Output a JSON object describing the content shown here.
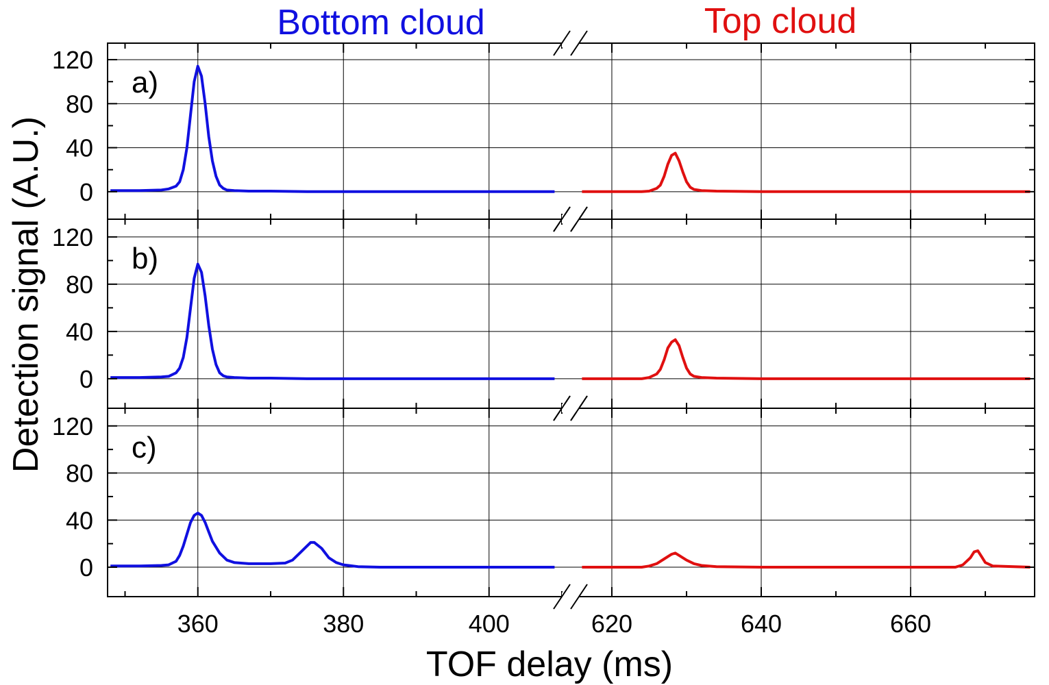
{
  "chart_data": {
    "type": "line",
    "xlabel": "TOF delay (ms)",
    "ylabel": "Detection signal (A.U.)",
    "segment_titles": [
      {
        "text": "Bottom cloud",
        "color": "#1010e0"
      },
      {
        "text": "Top cloud",
        "color": "#e01010"
      }
    ],
    "x_segments": [
      {
        "name": "bottom",
        "xlim": [
          347.6,
          410
        ],
        "ticks": [
          360,
          380,
          400
        ],
        "minor_ticks": [
          350,
          370,
          390,
          410
        ],
        "color": "#1010e0"
      },
      {
        "name": "top",
        "xlim": [
          615.6,
          676.6
        ],
        "ticks": [
          620,
          640,
          660
        ],
        "minor_ticks": [
          630,
          650,
          670
        ],
        "color": "#e01010"
      }
    ],
    "ylim": [
      -25,
      135
    ],
    "yticks": [
      0,
      40,
      80,
      120
    ],
    "yticks_minor": [
      20,
      60,
      100
    ],
    "panels": [
      {
        "label": "a)",
        "series": [
          {
            "segment": "bottom",
            "name": "Bottom cloud",
            "color": "#1010e0",
            "x": [
              348,
              352,
              355,
              356,
              357,
              357.5,
              358,
              358.5,
              359,
              359.5,
              360,
              360.5,
              361,
              361.5,
              362,
              362.5,
              363,
              363.5,
              364,
              365,
              367,
              370,
              375,
              380,
              385,
              390,
              395,
              400,
              405,
              409
            ],
            "y": [
              1,
              1,
              1.5,
              2.5,
              5,
              9,
              20,
              40,
              70,
              100,
              114,
              105,
              80,
              50,
              28,
              14,
              6,
              3,
              1.5,
              1,
              0.5,
              0.5,
              0,
              0,
              0,
              0,
              0,
              0,
              0,
              0
            ]
          },
          {
            "segment": "top",
            "name": "Top cloud",
            "color": "#e01010",
            "x": [
              616,
              620,
              624,
              625,
              626,
              626.5,
              627,
              627.5,
              628,
              628.5,
              629,
              629.5,
              630,
              630.5,
              631,
              632,
              634,
              640,
              650,
              660,
              670,
              676
            ],
            "y": [
              0,
              0,
              0,
              0.5,
              3,
              6,
              14,
              25,
              33,
              35,
              28,
              18,
              9,
              4,
              2,
              1,
              0.5,
              0,
              0,
              0,
              0,
              0
            ]
          }
        ]
      },
      {
        "label": "b)",
        "series": [
          {
            "segment": "bottom",
            "name": "Bottom cloud",
            "color": "#1010e0",
            "x": [
              348,
              352,
              355,
              356,
              357,
              357.5,
              358,
              358.5,
              359,
              359.5,
              360,
              360.5,
              361,
              361.5,
              362,
              362.5,
              363,
              363.5,
              364,
              365,
              367,
              370,
              375,
              380,
              385,
              390,
              395,
              400,
              405,
              409
            ],
            "y": [
              1,
              1,
              1.5,
              2,
              5,
              9,
              18,
              35,
              60,
              85,
              97,
              90,
              70,
              45,
              25,
              12,
              5,
              2.5,
              1.5,
              1,
              0.5,
              0.5,
              0,
              0,
              0,
              0,
              0,
              0,
              0,
              0
            ]
          },
          {
            "segment": "top",
            "name": "Top cloud",
            "color": "#e01010",
            "x": [
              616,
              620,
              624,
              625,
              626,
              626.5,
              627,
              627.5,
              628,
              628.5,
              629,
              629.5,
              630,
              630.5,
              631,
              632,
              634,
              640,
              650,
              660,
              670,
              676
            ],
            "y": [
              0,
              0,
              0,
              1,
              4,
              8,
              16,
              26,
              31,
              33,
              28,
              18,
              9,
              4,
              2,
              1,
              0.5,
              0,
              0,
              0,
              0,
              0
            ]
          }
        ]
      },
      {
        "label": "c)",
        "series": [
          {
            "segment": "bottom",
            "name": "Bottom cloud",
            "color": "#1010e0",
            "x": [
              348,
              352,
              355,
              356,
              357,
              357.5,
              358,
              358.5,
              359,
              359.5,
              360,
              360.5,
              361,
              361.5,
              362,
              363,
              364,
              365,
              367,
              370,
              372,
              373,
              374,
              375,
              375.5,
              376,
              377,
              378,
              379,
              380,
              382,
              385,
              390,
              395,
              400,
              405,
              409
            ],
            "y": [
              1,
              1,
              1.5,
              2,
              5,
              10,
              18,
              28,
              38,
              44,
              46,
              44,
              38,
              30,
              22,
              12,
              6,
              4,
              3,
              3,
              3.5,
              6,
              12,
              18,
              21,
              21,
              16,
              8,
              4,
              2,
              0.5,
              0,
              0,
              0,
              0,
              0,
              0
            ]
          },
          {
            "segment": "top",
            "name": "Top cloud",
            "color": "#e01010",
            "x": [
              616,
              620,
              624,
              625,
              626,
              627,
              628,
              628.5,
              629,
              630,
              631,
              632,
              634,
              640,
              650,
              660,
              666,
              667,
              668,
              668.5,
              669,
              669.5,
              670,
              671,
              676
            ],
            "y": [
              0,
              0,
              0,
              1,
              3,
              7,
              11,
              12,
              10,
              6,
              3,
              1.5,
              0.5,
              0,
              0,
              0,
              0,
              2,
              8,
              13,
              14,
              9,
              4,
              1,
              0
            ]
          }
        ]
      }
    ]
  }
}
